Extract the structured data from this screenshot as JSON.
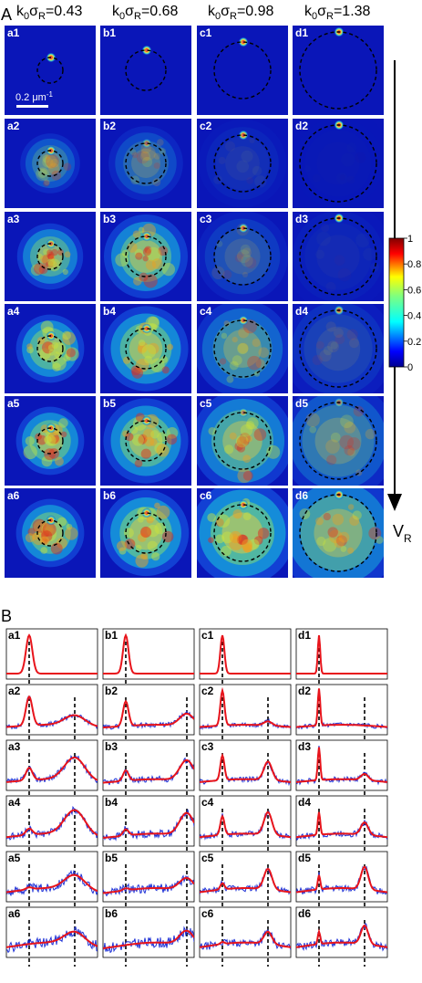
{
  "panel_a": {
    "label": "A",
    "columns": [
      {
        "id": "a",
        "header": "k0σR=0.43",
        "header_main": "k",
        "sub0": "0",
        "sigma": "σ",
        "subR": "R",
        "value": "=0.43",
        "radius_frac": 0.14
      },
      {
        "id": "b",
        "header": "k0σR=0.68",
        "header_main": "k",
        "sub0": "0",
        "sigma": "σ",
        "subR": "R",
        "value": "=0.68",
        "radius_frac": 0.22
      },
      {
        "id": "c",
        "header": "k0σR=0.98",
        "header_main": "k",
        "sub0": "0",
        "sigma": "σ",
        "subR": "R",
        "value": "=0.98",
        "radius_frac": 0.31
      },
      {
        "id": "d",
        "header": "k0σR=1.38",
        "header_main": "k",
        "sub0": "0",
        "sigma": "σ",
        "subR": "R",
        "value": "=1.38",
        "radius_frac": 0.42
      }
    ],
    "rows": [
      "1",
      "2",
      "3",
      "4",
      "5",
      "6"
    ],
    "tile_labels": [
      [
        "a1",
        "b1",
        "c1",
        "d1"
      ],
      [
        "a2",
        "b2",
        "c2",
        "d2"
      ],
      [
        "a3",
        "b3",
        "c3",
        "d3"
      ],
      [
        "a4",
        "b4",
        "c4",
        "d4"
      ],
      [
        "a5",
        "b5",
        "c5",
        "d5"
      ],
      [
        "a6",
        "b6",
        "c6",
        "d6"
      ]
    ],
    "halo_intensity": [
      [
        0.0,
        0.0,
        0.0,
        0.0
      ],
      [
        0.45,
        0.35,
        0.1,
        0.02
      ],
      [
        0.75,
        0.8,
        0.25,
        0.06
      ],
      [
        0.85,
        0.85,
        0.55,
        0.18
      ],
      [
        0.85,
        0.85,
        0.75,
        0.45
      ],
      [
        0.85,
        0.9,
        0.9,
        0.7
      ]
    ],
    "peak_intensity": [
      [
        1.0,
        1.0,
        1.0,
        1.0
      ],
      [
        0.9,
        0.6,
        0.9,
        1.0
      ],
      [
        0.8,
        0.85,
        0.85,
        1.0
      ],
      [
        0.95,
        0.9,
        0.85,
        0.8
      ],
      [
        0.95,
        0.95,
        0.6,
        0.6
      ],
      [
        0.95,
        0.95,
        0.9,
        0.95
      ]
    ],
    "scalebar_label": "0.2 μm",
    "scalebar_sup": "-1",
    "colorbar": {
      "ticks": [
        "1",
        "0.8",
        "0.6",
        "0.4",
        "0.2",
        "0"
      ],
      "min": 0,
      "max": 1,
      "colormap": "jet"
    },
    "arrow_label": "V",
    "arrow_sub": "R"
  },
  "panel_b": {
    "label": "B",
    "tile_labels": [
      [
        "a1",
        "b1",
        "c1",
        "d1"
      ],
      [
        "a2",
        "b2",
        "c2",
        "d2"
      ],
      [
        "a3",
        "b3",
        "c3",
        "d3"
      ],
      [
        "a4",
        "b4",
        "c4",
        "d4"
      ],
      [
        "a5",
        "b5",
        "c5",
        "d5"
      ],
      [
        "a6",
        "b6",
        "c6",
        "d6"
      ]
    ],
    "peak_width": [
      0.035,
      0.03,
      0.022,
      0.013
    ],
    "ring_position": [
      0.5,
      0.7,
      0.5,
      0.5
    ],
    "central_peak_height": [
      [
        0.93,
        0.93,
        0.93,
        0.93
      ],
      [
        0.7,
        0.6,
        0.85,
        0.9
      ],
      [
        0.3,
        0.25,
        0.6,
        0.8
      ],
      [
        0.15,
        0.15,
        0.45,
        0.55
      ],
      [
        0.05,
        0.05,
        0.15,
        0.35
      ],
      [
        0.0,
        0.0,
        0.05,
        0.3
      ]
    ],
    "ring_height": [
      [
        0.0,
        0.0,
        0.0,
        0.0
      ],
      [
        0.25,
        0.3,
        0.1,
        0.0
      ],
      [
        0.55,
        0.5,
        0.45,
        0.15
      ],
      [
        0.6,
        0.55,
        0.55,
        0.3
      ],
      [
        0.35,
        0.3,
        0.5,
        0.55
      ],
      [
        0.3,
        0.35,
        0.3,
        0.45
      ]
    ],
    "series_colors": {
      "fit": "#e8141b",
      "data": "#1c2fd6"
    }
  }
}
